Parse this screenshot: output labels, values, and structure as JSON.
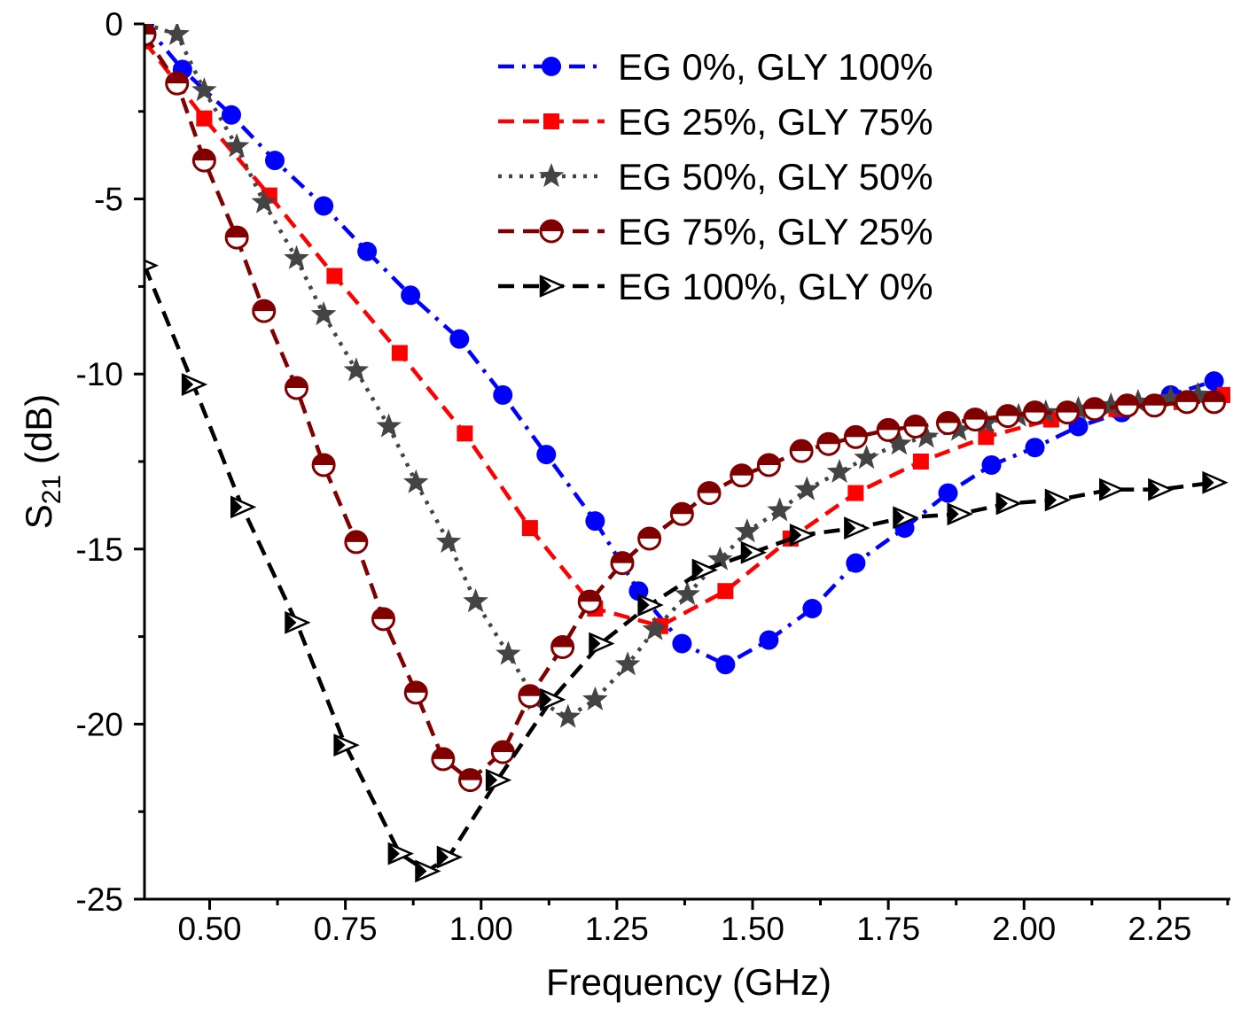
{
  "chart_data": {
    "type": "line",
    "title": "",
    "xlabel": "Frequency (GHz)",
    "ylabel": {
      "main": "S",
      "sub": "21",
      "unit": " (dB)"
    },
    "xlim": [
      0.38,
      2.38
    ],
    "ylim": [
      -25,
      0
    ],
    "x_ticks": [
      0.5,
      0.75,
      1.0,
      1.25,
      1.5,
      1.75,
      2.0,
      2.25
    ],
    "x_tick_labels": [
      "0.50",
      "0.75",
      "1.00",
      "1.25",
      "1.50",
      "1.75",
      "2.00",
      "2.25"
    ],
    "y_ticks": [
      0,
      -5,
      -10,
      -15,
      -20,
      -25
    ],
    "y_tick_labels": [
      "0",
      "-5",
      "-10",
      "-15",
      "-20",
      "-25"
    ],
    "grid": false,
    "legend_position": "top-right",
    "series": [
      {
        "name": "EG 0%, GLY 100%",
        "color": "#0000ff",
        "marker": "circle",
        "line_style": "dash-dot",
        "x": [
          0.38,
          0.45,
          0.54,
          0.62,
          0.71,
          0.79,
          0.87,
          0.96,
          1.04,
          1.12,
          1.21,
          1.29,
          1.37,
          1.45,
          1.53,
          1.61,
          1.69,
          1.78,
          1.86,
          1.94,
          2.02,
          2.1,
          2.18,
          2.27,
          2.35
        ],
        "y": [
          0.0,
          -1.3,
          -2.6,
          -3.9,
          -5.2,
          -6.5,
          -7.75,
          -9.0,
          -10.6,
          -12.3,
          -14.2,
          -16.2,
          -17.7,
          -18.3,
          -17.6,
          -16.7,
          -15.4,
          -14.4,
          -13.4,
          -12.6,
          -12.1,
          -11.5,
          -11.1,
          -10.6,
          -10.2
        ]
      },
      {
        "name": "EG 25%, GLY 75%",
        "color": "#ff0000",
        "marker": "square",
        "line_style": "dash",
        "x": [
          0.38,
          0.49,
          0.61,
          0.73,
          0.85,
          0.97,
          1.09,
          1.21,
          1.33,
          1.45,
          1.57,
          1.69,
          1.81,
          1.93,
          2.05,
          2.17,
          2.29,
          2.37
        ],
        "y": [
          -0.5,
          -2.7,
          -4.9,
          -7.2,
          -9.4,
          -11.7,
          -14.4,
          -16.7,
          -17.2,
          -16.2,
          -14.7,
          -13.4,
          -12.5,
          -11.8,
          -11.3,
          -11.0,
          -10.8,
          -10.6
        ]
      },
      {
        "name": "EG 50%, GLY 50%",
        "color": "#444444",
        "marker": "star",
        "line_style": "dot",
        "x": [
          0.38,
          0.44,
          0.49,
          0.55,
          0.6,
          0.66,
          0.71,
          0.77,
          0.83,
          0.88,
          0.94,
          0.99,
          1.05,
          1.1,
          1.16,
          1.21,
          1.27,
          1.32,
          1.38,
          1.44,
          1.49,
          1.55,
          1.6,
          1.66,
          1.71,
          1.77,
          1.82,
          1.88,
          1.93,
          1.99,
          2.04,
          2.1,
          2.16,
          2.21,
          2.27,
          2.32
        ],
        "y": [
          0.0,
          -0.3,
          -1.9,
          -3.5,
          -5.1,
          -6.7,
          -8.3,
          -9.9,
          -11.5,
          -13.1,
          -14.8,
          -16.5,
          -18.0,
          -19.3,
          -19.8,
          -19.3,
          -18.3,
          -17.3,
          -16.3,
          -15.3,
          -14.5,
          -13.9,
          -13.3,
          -12.8,
          -12.4,
          -12.0,
          -11.8,
          -11.6,
          -11.4,
          -11.2,
          -11.1,
          -11.0,
          -10.9,
          -10.8,
          -10.7,
          -10.6
        ]
      },
      {
        "name": "EG 75%, GLY 25%",
        "color": "#800000",
        "marker": "half-circle",
        "line_style": "dash",
        "x": [
          0.38,
          0.44,
          0.49,
          0.55,
          0.6,
          0.66,
          0.71,
          0.77,
          0.82,
          0.88,
          0.93,
          0.98,
          1.04,
          1.09,
          1.15,
          1.2,
          1.26,
          1.31,
          1.37,
          1.42,
          1.48,
          1.53,
          1.59,
          1.64,
          1.69,
          1.75,
          1.8,
          1.86,
          1.91,
          1.97,
          2.02,
          2.08,
          2.13,
          2.19,
          2.24,
          2.3,
          2.35
        ],
        "y": [
          -0.3,
          -1.7,
          -3.9,
          -6.1,
          -8.2,
          -10.4,
          -12.6,
          -14.8,
          -17.0,
          -19.1,
          -21.0,
          -21.6,
          -20.8,
          -19.2,
          -17.8,
          -16.5,
          -15.4,
          -14.7,
          -14.0,
          -13.4,
          -12.9,
          -12.6,
          -12.2,
          -12.0,
          -11.8,
          -11.6,
          -11.5,
          -11.4,
          -11.3,
          -11.2,
          -11.1,
          -11.1,
          -11.0,
          -10.9,
          -10.9,
          -10.8,
          -10.8
        ]
      },
      {
        "name": "EG 100%, GLY 0%",
        "color": "#000000",
        "marker": "triangle-right",
        "line_style": "dash",
        "x": [
          0.38,
          0.47,
          0.56,
          0.66,
          0.75,
          0.85,
          0.9,
          0.94,
          1.03,
          1.13,
          1.22,
          1.31,
          1.41,
          1.5,
          1.59,
          1.69,
          1.78,
          1.88,
          1.97,
          2.06,
          2.16,
          2.25,
          2.35
        ],
        "y": [
          -6.9,
          -10.3,
          -13.8,
          -17.1,
          -20.6,
          -23.7,
          -24.2,
          -23.8,
          -21.6,
          -19.3,
          -17.7,
          -16.6,
          -15.6,
          -15.1,
          -14.6,
          -14.4,
          -14.1,
          -14.0,
          -13.7,
          -13.6,
          -13.3,
          -13.3,
          -13.1
        ]
      }
    ]
  }
}
